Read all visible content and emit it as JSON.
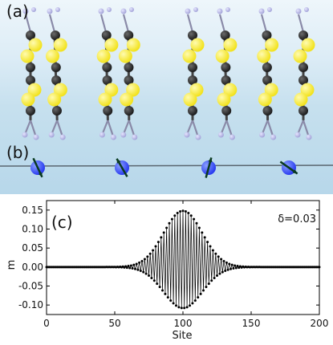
{
  "figure": {
    "panel_a_label": "(a)",
    "panel_b_label": "(b)",
    "panel_c_label": "(c)"
  },
  "colors": {
    "sulfur": "#f2e21c",
    "carbon": "#1c1c1c",
    "hydrogen": "#a3a3d8",
    "spin": "#2a3cf0",
    "arrow": "#0a3a20",
    "chain": "#5a6670",
    "data": "#000000"
  },
  "chart_data": {
    "type": "line",
    "title": "",
    "annotation": "δ=0.03",
    "xlabel": "Site",
    "ylabel": "m",
    "xlim": [
      0,
      200
    ],
    "ylim": [
      -0.125,
      0.175
    ],
    "xticks": [
      0,
      50,
      100,
      150,
      200
    ],
    "yticks": [
      -0.1,
      -0.05,
      0.0,
      0.05,
      0.1,
      0.15
    ],
    "ytick_labels": [
      "-0.10",
      "-0.05",
      "0.00",
      "0.05",
      "0.10",
      "0.15"
    ],
    "series": [
      {
        "description": "alternating magnetization, envelope peaks at site 100",
        "envelope_center": 100,
        "envelope_width": 20,
        "positive_peak": 0.148,
        "negative_peak": -0.108,
        "x_range": [
          0,
          200
        ]
      }
    ],
    "grid": false,
    "legend": "none"
  }
}
